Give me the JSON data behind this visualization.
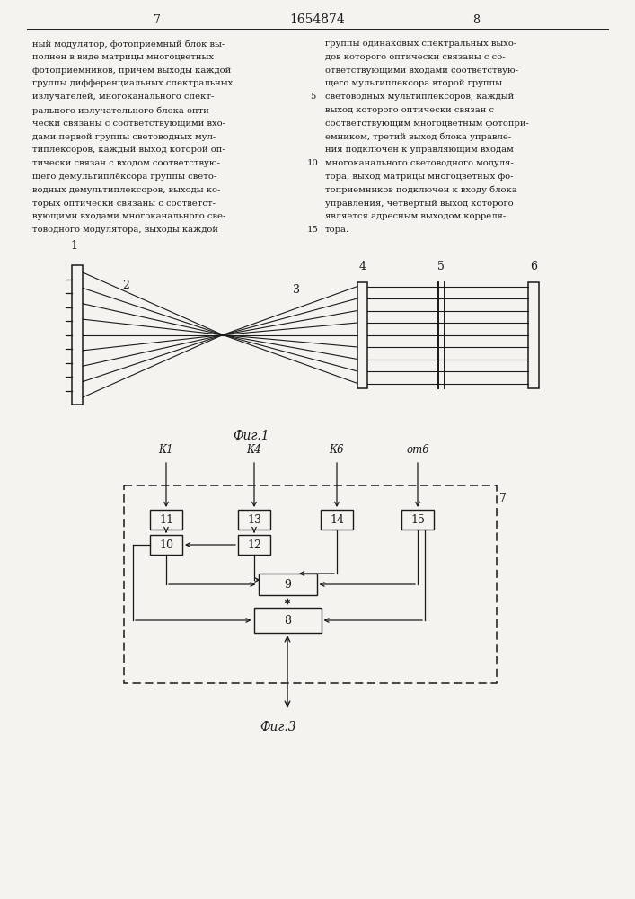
{
  "page_number_left": "7",
  "page_number_center": "1654874",
  "page_number_right": "8",
  "text_left": "ный модулятор, фотоприемный блок вы-\nполнен в виде матрицы многоцветных\nфотоприемников, причём выходы каждой\nгруппы дифференциальных спектральных\nизлучателей, многоканального спект-\nрального излучательного блока опти-\nчески связаны с соответствующими вхо-\nдами первой группы световодных мул-\nтиплексоров, каждый выход которой оп-\nтически связан с входом соответствую-\nщего демультиплёксора группы свето-\nводных демультиплексоров, выходы ко-\nторых оптически связаны с соответст-\nвующими входами многоканального све-\nтоводного модулятора, выходы каждой",
  "text_right": "группы одинаковых спектральных выхо-\nдов которого оптически связаны с со-\nответствующими входами соответствую-\nщего мультиплексора второй группы\nсветоводных мультиплексоров, каждый\nвыход которого оптически связан с\nсоответствующим многоцветным фотопри-\nемником, третий выход блока управле-\nния подключен к управляющим входам\nмногоканального световодного модуля-\nтора, выход матрицы многоцветных фо-\nтоприемников подключен к входу блока\nуправления, четвёртый выход которого\nявляется адресным выходом корреля-\nтора.",
  "fig1_caption": "Фиг.1",
  "fig3_caption": "Фиг.3",
  "bg_color": "#f5f3ef",
  "line_color": "#1a1a1a"
}
